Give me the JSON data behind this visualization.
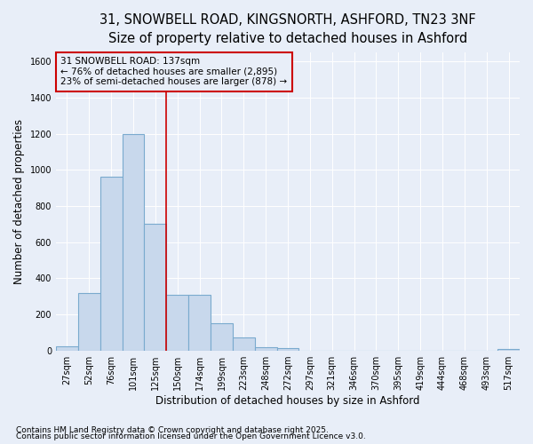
{
  "title_line1": "31, SNOWBELL ROAD, KINGSNORTH, ASHFORD, TN23 3NF",
  "title_line2": "Size of property relative to detached houses in Ashford",
  "xlabel": "Distribution of detached houses by size in Ashford",
  "ylabel": "Number of detached properties",
  "bar_color": "#c8d8ec",
  "bar_edge_color": "#7aaace",
  "categories": [
    "27sqm",
    "52sqm",
    "76sqm",
    "101sqm",
    "125sqm",
    "150sqm",
    "174sqm",
    "199sqm",
    "223sqm",
    "248sqm",
    "272sqm",
    "297sqm",
    "321sqm",
    "346sqm",
    "370sqm",
    "395sqm",
    "419sqm",
    "444sqm",
    "468sqm",
    "493sqm",
    "517sqm"
  ],
  "values": [
    25,
    320,
    960,
    1200,
    700,
    310,
    310,
    150,
    70,
    20,
    15,
    0,
    0,
    0,
    0,
    0,
    0,
    0,
    0,
    0,
    10
  ],
  "ylim": [
    0,
    1650
  ],
  "yticks": [
    0,
    200,
    400,
    600,
    800,
    1000,
    1200,
    1400,
    1600
  ],
  "annotation_text": "31 SNOWBELL ROAD: 137sqm\n← 76% of detached houses are smaller (2,895)\n23% of semi-detached houses are larger (878) →",
  "vline_color": "#cc0000",
  "annotation_box_color": "#cc0000",
  "bg_color": "#e8eef8",
  "plot_bg_color": "#eef2f8",
  "footer_line1": "Contains HM Land Registry data © Crown copyright and database right 2025.",
  "footer_line2": "Contains public sector information licensed under the Open Government Licence v3.0.",
  "title_fontsize": 10.5,
  "subtitle_fontsize": 9.5,
  "axis_label_fontsize": 8.5,
  "tick_fontsize": 7,
  "annotation_fontsize": 7.5,
  "footer_fontsize": 6.5
}
